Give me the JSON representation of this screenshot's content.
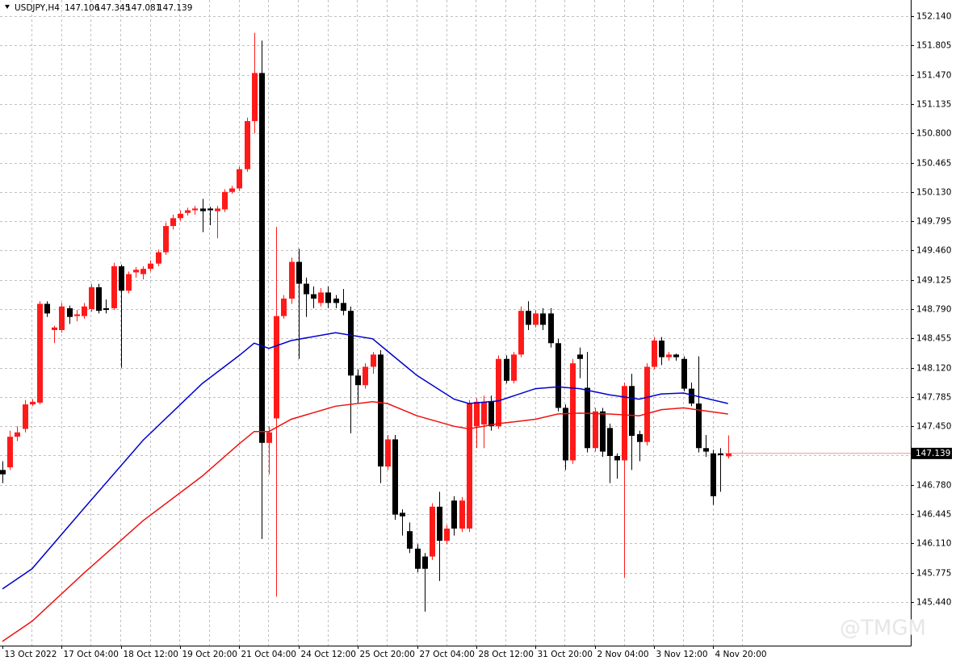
{
  "chart_data": {
    "type": "candlestick",
    "title": "USDJPY,H4",
    "categories": [
      "13 Oct 2022",
      null,
      null,
      null,
      null,
      null,
      null,
      null,
      "17 Oct 04:00",
      null,
      null,
      null,
      null,
      null,
      null,
      null,
      "18 Oct 12:00",
      null,
      null,
      null,
      null,
      null,
      null,
      null,
      "19 Oct 20:00",
      null,
      null,
      null,
      null,
      null,
      null,
      null,
      "21 Oct 04:00",
      null,
      null,
      null,
      null,
      null,
      null,
      null,
      "24 Oct 12:00",
      null,
      null,
      null,
      null,
      null,
      null,
      null,
      "25 Oct 20:00",
      null,
      null,
      null,
      null,
      null,
      null,
      null,
      "27 Oct 04:00",
      null,
      null,
      null,
      null,
      null,
      null,
      null,
      "28 Oct 12:00",
      null,
      null,
      null,
      null,
      null,
      null,
      null,
      "31 Oct 20:00",
      null,
      null,
      null,
      null,
      null,
      null,
      null,
      "2 Nov 04:00",
      null,
      null,
      null,
      null,
      null,
      null,
      null,
      "3 Nov 12:00",
      null,
      null,
      null,
      null,
      null,
      null,
      null,
      "4 Nov 20:00",
      null,
      null
    ],
    "open": [
      146.95,
      146.98,
      147.33,
      147.42,
      147.7,
      147.72,
      148.85,
      148.55,
      148.55,
      148.8,
      148.71,
      148.71,
      148.79,
      149.04,
      148.8,
      148.8,
      149.28,
      149.0,
      149.21,
      149.19,
      149.25,
      149.31,
      149.44,
      149.74,
      149.83,
      149.89,
      149.92,
      149.94,
      149.94,
      149.91,
      149.93,
      150.13,
      150.17,
      150.39,
      150.94,
      151.49,
      147.26,
      147.54,
      148.71,
      148.91,
      149.33,
      149.08,
      148.96,
      148.86,
      148.98,
      148.91,
      148.86,
      148.77,
      148.03,
      147.92,
      148.13,
      148.27,
      146.99,
      147.3,
      146.46,
      146.25,
      146.05,
      145.96,
      145.96,
      146.53,
      146.14,
      146.6,
      146.28,
      146.28,
      147.45,
      147.47,
      147.73,
      147.45,
      148.22,
      147.97,
      148.27,
      148.77,
      148.61,
      148.74,
      148.74,
      148.4,
      147.66,
      147.06,
      148.27,
      147.89,
      147.2,
      147.62,
      147.43,
      147.11,
      147.06,
      147.91,
      147.36,
      147.27,
      148.13,
      148.43,
      148.24,
      148.27,
      148.22,
      147.88,
      147.71,
      147.2,
      147.14,
      147.14,
      147.106
    ],
    "high": [
      147.05,
      147.4,
      147.45,
      147.75,
      147.76,
      148.88,
      148.88,
      148.6,
      148.86,
      148.83,
      148.78,
      148.86,
      149.08,
      149.08,
      148.9,
      149.32,
      149.3,
      149.22,
      149.27,
      149.28,
      149.35,
      149.47,
      149.78,
      149.87,
      149.92,
      149.95,
      149.97,
      150.05,
      149.96,
      149.97,
      150.16,
      150.2,
      150.42,
      150.98,
      151.95,
      151.86,
      147.45,
      149.73,
      148.95,
      149.38,
      149.48,
      149.15,
      149.05,
      149.03,
      149.05,
      148.95,
      149.02,
      148.82,
      148.1,
      148.17,
      148.3,
      148.32,
      147.35,
      147.35,
      146.5,
      146.35,
      146.1,
      146.0,
      146.57,
      146.7,
      146.32,
      146.65,
      146.64,
      147.75,
      147.77,
      147.8,
      147.8,
      148.26,
      148.26,
      148.3,
      148.82,
      148.88,
      148.78,
      148.8,
      148.8,
      148.45,
      147.7,
      148.22,
      148.35,
      148.3,
      147.66,
      147.66,
      147.48,
      147.14,
      147.95,
      148.05,
      147.4,
      148.17,
      148.47,
      148.47,
      148.3,
      148.28,
      148.25,
      147.95,
      148.25,
      147.35,
      147.18,
      147.2,
      147.345
    ],
    "low": [
      146.8,
      146.95,
      147.28,
      147.38,
      147.68,
      147.7,
      148.7,
      148.4,
      148.52,
      148.62,
      148.65,
      148.68,
      148.76,
      148.74,
      148.74,
      148.78,
      148.12,
      148.97,
      149.15,
      149.13,
      149.22,
      149.28,
      149.41,
      149.7,
      149.8,
      149.86,
      149.87,
      149.67,
      149.75,
      149.6,
      149.9,
      150.11,
      150.14,
      150.36,
      150.8,
      146.16,
      146.9,
      145.5,
      148.68,
      148.85,
      148.22,
      148.7,
      148.8,
      148.82,
      148.8,
      148.8,
      148.72,
      147.37,
      147.72,
      147.88,
      148.05,
      146.8,
      146.95,
      146.38,
      146.2,
      146.0,
      145.78,
      145.33,
      145.92,
      145.68,
      146.1,
      146.2,
      146.24,
      146.24,
      147.2,
      147.2,
      147.4,
      147.42,
      147.94,
      147.94,
      148.24,
      148.55,
      148.58,
      148.55,
      148.35,
      147.62,
      146.95,
      147.02,
      148.0,
      147.15,
      147.16,
      147.1,
      146.8,
      146.85,
      145.72,
      146.95,
      147.05,
      147.23,
      148.1,
      148.15,
      148.2,
      148.2,
      147.85,
      147.68,
      147.15,
      147.1,
      146.55,
      146.7,
      147.081
    ],
    "close": [
      146.9,
      147.33,
      147.38,
      147.7,
      147.73,
      148.85,
      148.74,
      148.58,
      148.82,
      148.7,
      148.73,
      148.82,
      149.04,
      148.77,
      148.78,
      149.28,
      149.0,
      149.19,
      149.24,
      149.25,
      149.31,
      149.44,
      149.74,
      149.83,
      149.88,
      149.92,
      149.94,
      149.91,
      149.92,
      149.94,
      150.13,
      150.17,
      150.39,
      150.94,
      151.49,
      147.26,
      147.38,
      148.71,
      148.91,
      149.33,
      149.08,
      148.96,
      148.91,
      148.98,
      148.86,
      148.86,
      148.77,
      148.03,
      147.92,
      148.13,
      148.27,
      146.99,
      147.3,
      146.44,
      146.42,
      146.05,
      145.82,
      145.82,
      146.53,
      146.14,
      146.28,
      146.28,
      146.6,
      147.71,
      147.73,
      147.73,
      147.45,
      148.22,
      147.97,
      148.27,
      148.77,
      148.61,
      148.74,
      148.61,
      148.4,
      147.66,
      147.06,
      148.17,
      148.22,
      147.2,
      147.62,
      147.16,
      147.11,
      147.06,
      147.91,
      147.34,
      147.27,
      148.13,
      148.43,
      148.24,
      148.27,
      148.24,
      147.88,
      147.71,
      147.2,
      147.16,
      146.65,
      147.12,
      147.139
    ],
    "up_color": "#ff1a1a",
    "down_color": "#000000",
    "series": [
      {
        "color": "#0000cc",
        "x": [
          0,
          4,
          11,
          19,
          27,
          32,
          34,
          36,
          39,
          45,
          50,
          52,
          56,
          61,
          63,
          67,
          72,
          75,
          78,
          82,
          86,
          89,
          92,
          98
        ],
        "values": [
          145.59,
          145.82,
          146.51,
          147.29,
          147.94,
          148.26,
          148.4,
          148.34,
          148.43,
          148.52,
          148.45,
          148.31,
          148.03,
          147.76,
          147.71,
          147.74,
          147.88,
          147.9,
          147.88,
          147.81,
          147.76,
          147.82,
          147.83,
          147.71
        ]
      },
      {
        "color": "#ee1111",
        "x": [
          0,
          4,
          11,
          19,
          27,
          32,
          34,
          36,
          39,
          45,
          50,
          52,
          56,
          61,
          63,
          67,
          72,
          75,
          78,
          82,
          86,
          89,
          92,
          98
        ],
        "values": [
          144.99,
          145.22,
          145.77,
          146.37,
          146.88,
          147.25,
          147.39,
          147.39,
          147.53,
          147.68,
          147.73,
          147.71,
          147.57,
          147.45,
          147.42,
          147.48,
          147.53,
          147.59,
          147.6,
          147.59,
          147.57,
          147.64,
          147.66,
          147.59
        ]
      }
    ],
    "ylim": [
      144.941,
      152.325
    ],
    "yticks": [
      {
        "value": 152.14,
        "label": "152.140"
      },
      151.805,
      {
        "value": 151.47,
        "label": "151.470"
      },
      151.135,
      {
        "value": 150.8,
        "label": "150.800"
      },
      150.465,
      {
        "value": 150.13,
        "label": "150.130"
      },
      149.795,
      {
        "value": 149.46,
        "label": "149.460"
      },
      149.125,
      {
        "value": 148.79,
        "label": "148.790"
      },
      148.455,
      {
        "value": 148.12,
        "label": "148.120"
      },
      147.785,
      {
        "value": 147.45,
        "label": "147.450"
      },
      147.115,
      {
        "value": 146.78,
        "label": "146.780"
      },
      146.445,
      {
        "value": 146.11,
        "label": "146.110"
      },
      145.775,
      {
        "value": 145.44,
        "label": "145.440"
      }
    ],
    "grid": true,
    "watermark": "@TMGM"
  }
}
